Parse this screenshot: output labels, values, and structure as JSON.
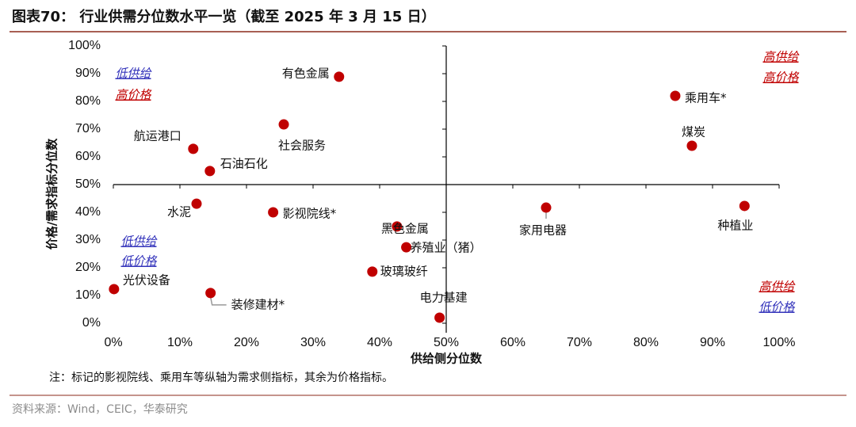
{
  "chart_data": {
    "type": "scatter",
    "title": "图表70：  行业供需分位数水平一览（截至 2025 年 3 月 15 日）",
    "x_label": "供给侧分位数",
    "y_label": "价格/需求指标分位数",
    "note": "注：标记的影视院线、乘用车等纵轴为需求侧指标，其余为价格指标。",
    "source": "资料来源：Wind，CEIC，华泰研究",
    "color": "#c00000",
    "xlim": [
      0,
      100
    ],
    "ylim": [
      0,
      100
    ],
    "axis_cross": {
      "x": 50,
      "y": 50
    },
    "xticks": [
      {
        "value": 0,
        "label": "0%"
      },
      {
        "value": 10,
        "label": "10%"
      },
      {
        "value": 20,
        "label": "20%"
      },
      {
        "value": 30,
        "label": "30%"
      },
      {
        "value": 40,
        "label": "40%"
      },
      {
        "value": 50,
        "label": "50%"
      },
      {
        "value": 60,
        "label": "60%"
      },
      {
        "value": 70,
        "label": "70%"
      },
      {
        "value": 80,
        "label": "80%"
      },
      {
        "value": 90,
        "label": "90%"
      },
      {
        "value": 100,
        "label": "100%"
      }
    ],
    "yticks": [
      {
        "value": 0,
        "label": "0%"
      },
      {
        "value": 10,
        "label": "10%"
      },
      {
        "value": 20,
        "label": "20%"
      },
      {
        "value": 30,
        "label": "30%"
      },
      {
        "value": 40,
        "label": "40%"
      },
      {
        "value": 50,
        "label": "50%"
      },
      {
        "value": 60,
        "label": "60%"
      },
      {
        "value": 70,
        "label": "70%"
      },
      {
        "value": 80,
        "label": "80%"
      },
      {
        "value": 90,
        "label": "90%"
      },
      {
        "value": 100,
        "label": "100%"
      }
    ],
    "points": [
      {
        "label": "有色金属",
        "x": 33.9,
        "y": 88.9
      },
      {
        "label": "社会服务",
        "x": 25.6,
        "y": 71.7
      },
      {
        "label": "航运港口",
        "x": 12.0,
        "y": 62.9
      },
      {
        "label": "石油石化",
        "x": 14.5,
        "y": 54.9
      },
      {
        "label": "水泥",
        "x": 12.5,
        "y": 43.1
      },
      {
        "label": "影视院线*",
        "x": 24.0,
        "y": 40.0
      },
      {
        "label": "光伏设备",
        "x": 0.1,
        "y": 12.3
      },
      {
        "label": "装修建材*",
        "x": 14.6,
        "y": 10.9
      },
      {
        "label": "黑色金属",
        "x": 42.6,
        "y": 34.9
      },
      {
        "label": "养殖业（猪）",
        "x": 44.0,
        "y": 27.4
      },
      {
        "label": "玻璃玻纤",
        "x": 38.9,
        "y": 18.6
      },
      {
        "label": "电力基建",
        "x": 49.0,
        "y": 2.0
      },
      {
        "label": "家用电器",
        "x": 65.0,
        "y": 41.7
      },
      {
        "label": "乘用车*",
        "x": 84.4,
        "y": 82.0
      },
      {
        "label": "煤炭",
        "x": 86.9,
        "y": 64.0
      },
      {
        "label": "种植业",
        "x": 94.8,
        "y": 42.3
      }
    ],
    "annotations": [
      {
        "text": "低供给",
        "color": "#3333bb"
      },
      {
        "text": "高价格",
        "color": "#c00000"
      },
      {
        "text": "低供给",
        "color": "#3333bb"
      },
      {
        "text": "低价格",
        "color": "#3333bb"
      },
      {
        "text": "高供给",
        "color": "#c00000"
      },
      {
        "text": "高价格",
        "color": "#c00000"
      },
      {
        "text": "高供给",
        "color": "#c00000"
      },
      {
        "text": "低价格",
        "color": "#3333bb"
      }
    ]
  }
}
